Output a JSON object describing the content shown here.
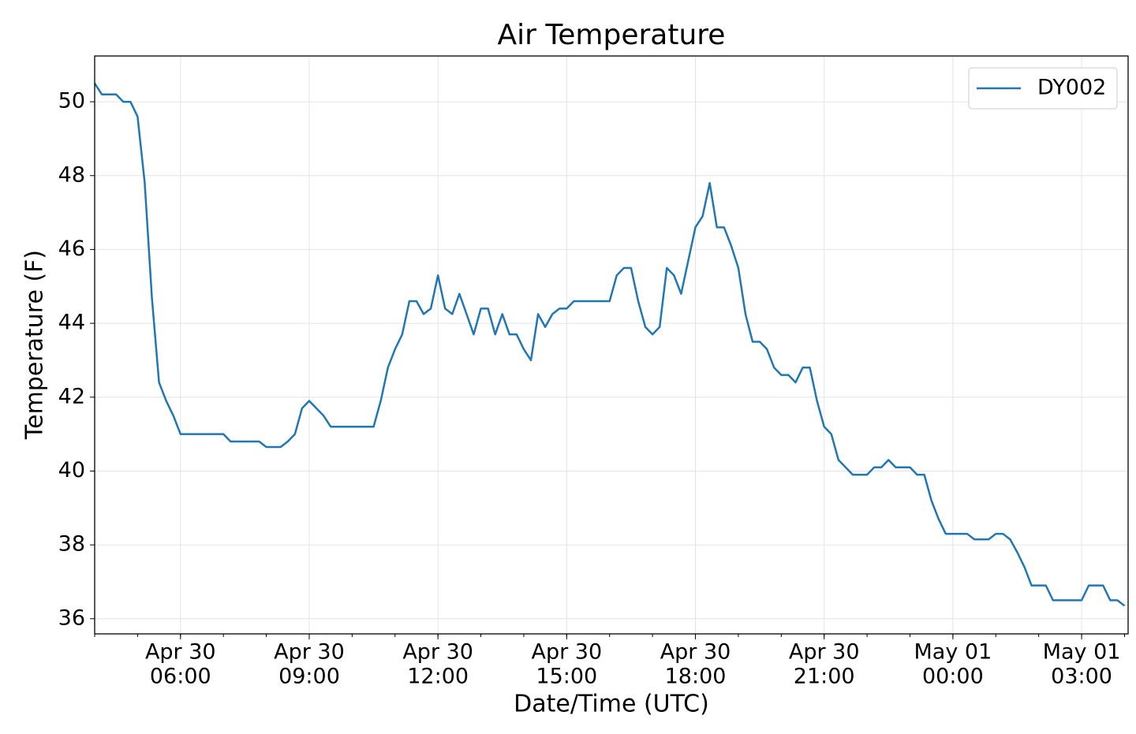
{
  "chart_data": {
    "type": "line",
    "title": "Air Temperature",
    "xlabel": "Date/Time (UTC)",
    "ylabel": "Temperature (F)",
    "x": [
      "Apr 30 04:00",
      "Apr 30 04:10",
      "Apr 30 04:20",
      "Apr 30 04:30",
      "Apr 30 04:40",
      "Apr 30 04:50",
      "Apr 30 05:00",
      "Apr 30 05:10",
      "Apr 30 05:20",
      "Apr 30 05:30",
      "Apr 30 05:40",
      "Apr 30 05:50",
      "Apr 30 06:00",
      "Apr 30 06:10",
      "Apr 30 06:20",
      "Apr 30 06:30",
      "Apr 30 06:40",
      "Apr 30 06:50",
      "Apr 30 07:00",
      "Apr 30 07:10",
      "Apr 30 07:20",
      "Apr 30 07:30",
      "Apr 30 07:40",
      "Apr 30 07:50",
      "Apr 30 08:00",
      "Apr 30 08:10",
      "Apr 30 08:20",
      "Apr 30 08:30",
      "Apr 30 08:40",
      "Apr 30 08:50",
      "Apr 30 09:00",
      "Apr 30 09:10",
      "Apr 30 09:20",
      "Apr 30 09:30",
      "Apr 30 09:40",
      "Apr 30 09:50",
      "Apr 30 10:00",
      "Apr 30 10:10",
      "Apr 30 10:20",
      "Apr 30 10:30",
      "Apr 30 10:40",
      "Apr 30 10:50",
      "Apr 30 11:00",
      "Apr 30 11:10",
      "Apr 30 11:20",
      "Apr 30 11:30",
      "Apr 30 11:40",
      "Apr 30 11:50",
      "Apr 30 12:00",
      "Apr 30 12:10",
      "Apr 30 12:20",
      "Apr 30 12:30",
      "Apr 30 12:40",
      "Apr 30 12:50",
      "Apr 30 13:00",
      "Apr 30 13:10",
      "Apr 30 13:20",
      "Apr 30 13:30",
      "Apr 30 13:40",
      "Apr 30 13:50",
      "Apr 30 14:00",
      "Apr 30 14:10",
      "Apr 30 14:20",
      "Apr 30 14:30",
      "Apr 30 14:40",
      "Apr 30 14:50",
      "Apr 30 15:00",
      "Apr 30 15:10",
      "Apr 30 15:20",
      "Apr 30 15:30",
      "Apr 30 15:40",
      "Apr 30 15:50",
      "Apr 30 16:00",
      "Apr 30 16:10",
      "Apr 30 16:20",
      "Apr 30 16:30",
      "Apr 30 16:40",
      "Apr 30 16:50",
      "Apr 30 17:00",
      "Apr 30 17:10",
      "Apr 30 17:20",
      "Apr 30 17:30",
      "Apr 30 17:40",
      "Apr 30 17:50",
      "Apr 30 18:00",
      "Apr 30 18:10",
      "Apr 30 18:20",
      "Apr 30 18:30",
      "Apr 30 18:40",
      "Apr 30 18:50",
      "Apr 30 19:00",
      "Apr 30 19:10",
      "Apr 30 19:20",
      "Apr 30 19:30",
      "Apr 30 19:40",
      "Apr 30 19:50",
      "Apr 30 20:00",
      "Apr 30 20:10",
      "Apr 30 20:20",
      "Apr 30 20:30",
      "Apr 30 20:40",
      "Apr 30 20:50",
      "Apr 30 21:00",
      "Apr 30 21:10",
      "Apr 30 21:20",
      "Apr 30 21:30",
      "Apr 30 21:40",
      "Apr 30 21:50",
      "Apr 30 22:00",
      "Apr 30 22:10",
      "Apr 30 22:20",
      "Apr 30 22:30",
      "Apr 30 22:40",
      "Apr 30 22:50",
      "Apr 30 23:00",
      "Apr 30 23:10",
      "Apr 30 23:20",
      "Apr 30 23:30",
      "Apr 30 23:40",
      "Apr 30 23:50",
      "May 01 00:00",
      "May 01 00:10",
      "May 01 00:20",
      "May 01 00:30",
      "May 01 00:40",
      "May 01 00:50",
      "May 01 01:00",
      "May 01 01:10",
      "May 01 01:20",
      "May 01 01:30",
      "May 01 01:40",
      "May 01 01:50",
      "May 01 02:00",
      "May 01 02:10",
      "May 01 02:20",
      "May 01 02:30",
      "May 01 02:40",
      "May 01 02:50",
      "May 01 03:00",
      "May 01 03:10",
      "May 01 03:20",
      "May 01 03:30",
      "May 01 03:40",
      "May 01 03:50",
      "May 01 04:00"
    ],
    "series": [
      {
        "name": "DY002",
        "color": "#1f77b4",
        "values": [
          50.5,
          50.2,
          50.2,
          50.2,
          50.0,
          50.0,
          49.6,
          47.8,
          44.7,
          42.4,
          41.9,
          41.5,
          41.0,
          41.0,
          41.0,
          41.0,
          41.0,
          41.0,
          41.0,
          40.8,
          40.8,
          40.8,
          40.8,
          40.8,
          40.65,
          40.65,
          40.65,
          40.8,
          41.0,
          41.7,
          41.9,
          41.7,
          41.5,
          41.2,
          41.2,
          41.2,
          41.2,
          41.2,
          41.2,
          41.2,
          41.9,
          42.8,
          43.3,
          43.7,
          44.6,
          44.6,
          44.25,
          44.4,
          45.3,
          44.4,
          44.25,
          44.8,
          44.25,
          43.7,
          44.4,
          44.4,
          43.7,
          44.25,
          43.7,
          43.7,
          43.3,
          43.0,
          44.25,
          43.9,
          44.25,
          44.4,
          44.4,
          44.6,
          44.6,
          44.6,
          44.6,
          44.6,
          44.6,
          45.3,
          45.5,
          45.5,
          44.6,
          43.9,
          43.7,
          43.9,
          45.5,
          45.3,
          44.8,
          45.7,
          46.6,
          46.9,
          47.8,
          46.6,
          46.6,
          46.1,
          45.5,
          44.25,
          43.5,
          43.5,
          43.3,
          42.8,
          42.6,
          42.6,
          42.4,
          42.8,
          42.8,
          41.9,
          41.2,
          41.0,
          40.3,
          40.1,
          39.9,
          39.9,
          39.9,
          40.1,
          40.1,
          40.3,
          40.1,
          40.1,
          40.1,
          39.9,
          39.9,
          39.2,
          38.7,
          38.3,
          38.3,
          38.3,
          38.3,
          38.15,
          38.15,
          38.15,
          38.3,
          38.3,
          38.15,
          37.8,
          37.4,
          36.9,
          36.9,
          36.9,
          36.5,
          36.5,
          36.5,
          36.5,
          36.5,
          36.9,
          36.9,
          36.9,
          36.5,
          36.5,
          36.35
        ]
      }
    ],
    "xlim": [
      "Apr 30 04:00",
      "May 01 04:05"
    ],
    "xticks": [
      {
        "value": "Apr 30 06:00",
        "label": [
          "Apr 30",
          "06:00"
        ]
      },
      {
        "value": "Apr 30 09:00",
        "label": [
          "Apr 30",
          "09:00"
        ]
      },
      {
        "value": "Apr 30 12:00",
        "label": [
          "Apr 30",
          "12:00"
        ]
      },
      {
        "value": "Apr 30 15:00",
        "label": [
          "Apr 30",
          "15:00"
        ]
      },
      {
        "value": "Apr 30 18:00",
        "label": [
          "Apr 30",
          "18:00"
        ]
      },
      {
        "value": "Apr 30 21:00",
        "label": [
          "Apr 30",
          "21:00"
        ]
      },
      {
        "value": "May 01 00:00",
        "label": [
          "May 01",
          "00:00"
        ]
      },
      {
        "value": "May 01 03:00",
        "label": [
          "May 01",
          "03:00"
        ]
      }
    ],
    "ylim": [
      35.59,
      51.24
    ],
    "yticks": [
      36,
      38,
      40,
      42,
      44,
      46,
      48,
      50
    ],
    "grid": true,
    "legend": "upper right"
  }
}
